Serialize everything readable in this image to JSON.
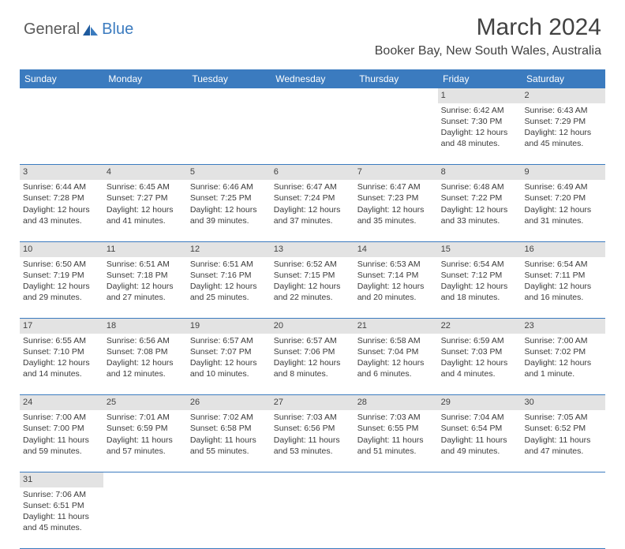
{
  "logo": {
    "text1": "General",
    "text2": "Blue"
  },
  "title": "March 2024",
  "location": "Booker Bay, New South Wales, Australia",
  "colors": {
    "header_bg": "#3b7bbf",
    "header_text": "#ffffff",
    "daynum_bg": "#e3e3e3",
    "cell_text": "#3a3a3a",
    "border": "#3b7bbf"
  },
  "weekdays": [
    "Sunday",
    "Monday",
    "Tuesday",
    "Wednesday",
    "Thursday",
    "Friday",
    "Saturday"
  ],
  "weeks": [
    [
      null,
      null,
      null,
      null,
      null,
      {
        "d": "1",
        "sr": "6:42 AM",
        "ss": "7:30 PM",
        "dl": "12 hours and 48 minutes."
      },
      {
        "d": "2",
        "sr": "6:43 AM",
        "ss": "7:29 PM",
        "dl": "12 hours and 45 minutes."
      }
    ],
    [
      {
        "d": "3",
        "sr": "6:44 AM",
        "ss": "7:28 PM",
        "dl": "12 hours and 43 minutes."
      },
      {
        "d": "4",
        "sr": "6:45 AM",
        "ss": "7:27 PM",
        "dl": "12 hours and 41 minutes."
      },
      {
        "d": "5",
        "sr": "6:46 AM",
        "ss": "7:25 PM",
        "dl": "12 hours and 39 minutes."
      },
      {
        "d": "6",
        "sr": "6:47 AM",
        "ss": "7:24 PM",
        "dl": "12 hours and 37 minutes."
      },
      {
        "d": "7",
        "sr": "6:47 AM",
        "ss": "7:23 PM",
        "dl": "12 hours and 35 minutes."
      },
      {
        "d": "8",
        "sr": "6:48 AM",
        "ss": "7:22 PM",
        "dl": "12 hours and 33 minutes."
      },
      {
        "d": "9",
        "sr": "6:49 AM",
        "ss": "7:20 PM",
        "dl": "12 hours and 31 minutes."
      }
    ],
    [
      {
        "d": "10",
        "sr": "6:50 AM",
        "ss": "7:19 PM",
        "dl": "12 hours and 29 minutes."
      },
      {
        "d": "11",
        "sr": "6:51 AM",
        "ss": "7:18 PM",
        "dl": "12 hours and 27 minutes."
      },
      {
        "d": "12",
        "sr": "6:51 AM",
        "ss": "7:16 PM",
        "dl": "12 hours and 25 minutes."
      },
      {
        "d": "13",
        "sr": "6:52 AM",
        "ss": "7:15 PM",
        "dl": "12 hours and 22 minutes."
      },
      {
        "d": "14",
        "sr": "6:53 AM",
        "ss": "7:14 PM",
        "dl": "12 hours and 20 minutes."
      },
      {
        "d": "15",
        "sr": "6:54 AM",
        "ss": "7:12 PM",
        "dl": "12 hours and 18 minutes."
      },
      {
        "d": "16",
        "sr": "6:54 AM",
        "ss": "7:11 PM",
        "dl": "12 hours and 16 minutes."
      }
    ],
    [
      {
        "d": "17",
        "sr": "6:55 AM",
        "ss": "7:10 PM",
        "dl": "12 hours and 14 minutes."
      },
      {
        "d": "18",
        "sr": "6:56 AM",
        "ss": "7:08 PM",
        "dl": "12 hours and 12 minutes."
      },
      {
        "d": "19",
        "sr": "6:57 AM",
        "ss": "7:07 PM",
        "dl": "12 hours and 10 minutes."
      },
      {
        "d": "20",
        "sr": "6:57 AM",
        "ss": "7:06 PM",
        "dl": "12 hours and 8 minutes."
      },
      {
        "d": "21",
        "sr": "6:58 AM",
        "ss": "7:04 PM",
        "dl": "12 hours and 6 minutes."
      },
      {
        "d": "22",
        "sr": "6:59 AM",
        "ss": "7:03 PM",
        "dl": "12 hours and 4 minutes."
      },
      {
        "d": "23",
        "sr": "7:00 AM",
        "ss": "7:02 PM",
        "dl": "12 hours and 1 minute."
      }
    ],
    [
      {
        "d": "24",
        "sr": "7:00 AM",
        "ss": "7:00 PM",
        "dl": "11 hours and 59 minutes."
      },
      {
        "d": "25",
        "sr": "7:01 AM",
        "ss": "6:59 PM",
        "dl": "11 hours and 57 minutes."
      },
      {
        "d": "26",
        "sr": "7:02 AM",
        "ss": "6:58 PM",
        "dl": "11 hours and 55 minutes."
      },
      {
        "d": "27",
        "sr": "7:03 AM",
        "ss": "6:56 PM",
        "dl": "11 hours and 53 minutes."
      },
      {
        "d": "28",
        "sr": "7:03 AM",
        "ss": "6:55 PM",
        "dl": "11 hours and 51 minutes."
      },
      {
        "d": "29",
        "sr": "7:04 AM",
        "ss": "6:54 PM",
        "dl": "11 hours and 49 minutes."
      },
      {
        "d": "30",
        "sr": "7:05 AM",
        "ss": "6:52 PM",
        "dl": "11 hours and 47 minutes."
      }
    ],
    [
      {
        "d": "31",
        "sr": "7:06 AM",
        "ss": "6:51 PM",
        "dl": "11 hours and 45 minutes."
      },
      null,
      null,
      null,
      null,
      null,
      null
    ]
  ],
  "labels": {
    "sunrise": "Sunrise:",
    "sunset": "Sunset:",
    "daylight": "Daylight:"
  }
}
